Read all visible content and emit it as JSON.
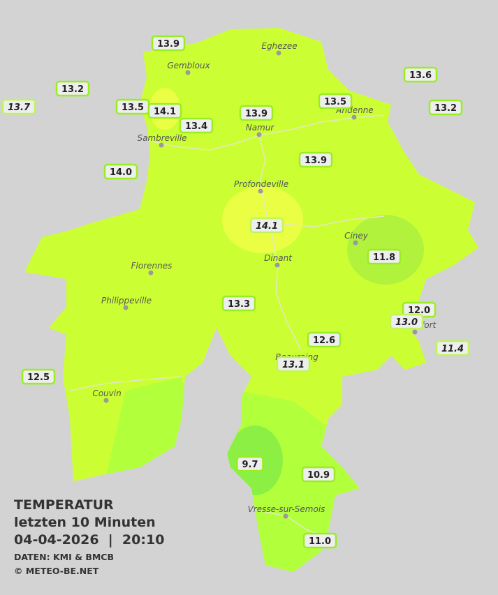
{
  "title": {
    "heading": "TEMPERATUR",
    "period": "letzten 10 Minuten",
    "datetime": "04-04-2026  |  20:10",
    "source": "DATEN: KMI & BMCB",
    "copyright": "© METEO-BE.NET"
  },
  "towns": [
    "Eghezee",
    "Gembloux",
    "Andenne",
    "Namur",
    "Sambreville",
    "Profondeville",
    "Ciney",
    "Dinant",
    "Florennes",
    "Philippeville",
    "Couvin",
    "Vresse-sur-Semois",
    "Beauraing",
    "Rochefort"
  ],
  "stations": [
    {
      "text": "13.9",
      "italic": false
    },
    {
      "text": "13.2",
      "italic": false
    },
    {
      "text": "13.7",
      "italic": true
    },
    {
      "text": "13.5",
      "italic": false
    },
    {
      "text": "14.1",
      "italic": false
    },
    {
      "text": "13.4",
      "italic": false
    },
    {
      "text": "13.9",
      "italic": false
    },
    {
      "text": "13.5",
      "italic": false
    },
    {
      "text": "13.6",
      "italic": false
    },
    {
      "text": "13.2",
      "italic": false
    },
    {
      "text": "14.0",
      "italic": false
    },
    {
      "text": "13.9",
      "italic": false
    },
    {
      "text": "14.1",
      "italic": true
    },
    {
      "text": "11.8",
      "italic": false
    },
    {
      "text": "13.3",
      "italic": false
    },
    {
      "text": "12.0",
      "italic": false
    },
    {
      "text": "13.0",
      "italic": true
    },
    {
      "text": "12.6",
      "italic": false
    },
    {
      "text": "11.4",
      "italic": true
    },
    {
      "text": "13.1",
      "italic": true
    },
    {
      "text": "12.5",
      "italic": false
    },
    {
      "text": "9.7",
      "italic": false
    },
    {
      "text": "10.9",
      "italic": false
    },
    {
      "text": "11.0",
      "italic": false
    }
  ]
}
